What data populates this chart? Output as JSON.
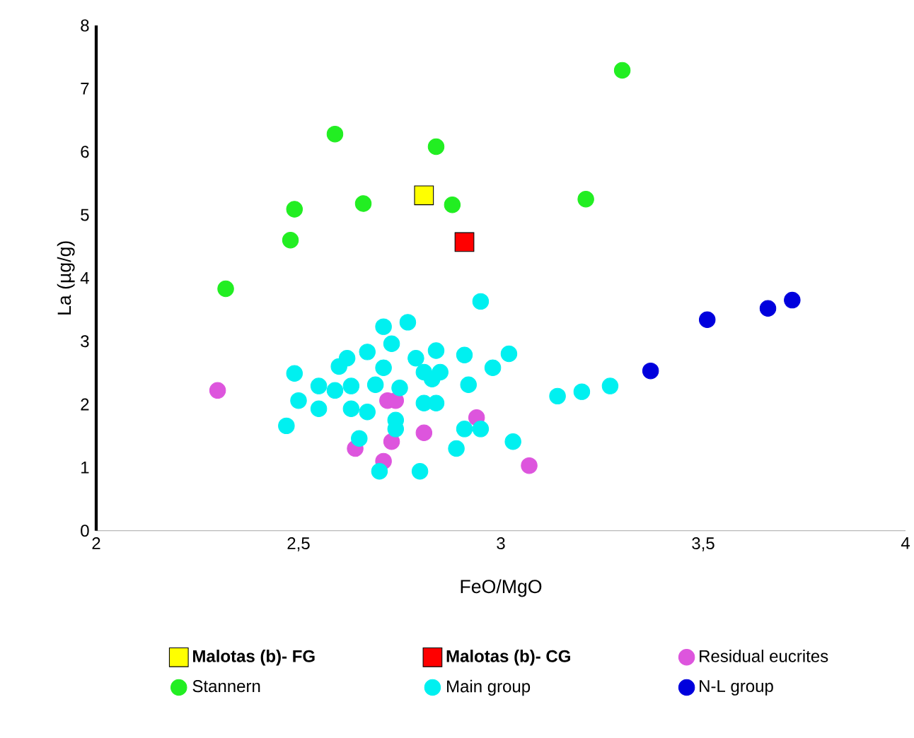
{
  "chart_data": {
    "type": "scatter",
    "xlabel": "FeO/MgO",
    "ylabel": "La (µg/g)",
    "xlim": [
      2,
      4
    ],
    "ylim": [
      0,
      8
    ],
    "xticks": [
      2,
      {
        "value": 2.5,
        "label": "2,5"
      },
      3,
      {
        "value": 3.5,
        "label": "3,5"
      },
      4
    ],
    "yticks": [
      0,
      1,
      2,
      3,
      4,
      5,
      6,
      7,
      8
    ],
    "grid": false,
    "legend": "bottom",
    "series": [
      {
        "name": "Malotas (b)- FG",
        "color": "#ffff00",
        "marker": "square",
        "x": [
          2.81
        ],
        "values": [
          5.31
        ]
      },
      {
        "name": "Malotas (b)- CG",
        "color": "#ff0000",
        "marker": "square",
        "x": [
          2.91
        ],
        "values": [
          4.57
        ]
      },
      {
        "name": "Residual eucrites",
        "color": "#dd55dd",
        "marker": "circle",
        "x": [
          2.3,
          2.72,
          2.74,
          2.94,
          2.81,
          2.73,
          2.64,
          2.71,
          3.07
        ],
        "values": [
          2.22,
          2.06,
          2.06,
          1.79,
          1.55,
          1.41,
          1.3,
          1.1,
          1.03
        ]
      },
      {
        "name": "Stannern",
        "color": "#22ee22",
        "marker": "circle",
        "x": [
          2.32,
          2.49,
          2.48,
          2.59,
          2.66,
          2.84,
          2.88,
          3.21,
          3.3
        ],
        "values": [
          3.83,
          5.09,
          4.6,
          6.28,
          5.18,
          6.08,
          5.16,
          5.25,
          7.29
        ]
      },
      {
        "name": "Main group",
        "color": "#00f0f0",
        "marker": "circle",
        "x": [
          2.95,
          2.71,
          2.77,
          2.73,
          2.67,
          2.62,
          2.6,
          2.49,
          2.55,
          2.59,
          2.63,
          2.69,
          2.71,
          2.75,
          2.79,
          2.84,
          2.91,
          2.83,
          2.84,
          2.81,
          2.92,
          2.98,
          3.02,
          2.5,
          2.55,
          2.47,
          2.63,
          2.67,
          2.74,
          2.74,
          2.91,
          2.95,
          3.03,
          2.89,
          2.65,
          2.7,
          2.8,
          3.14,
          3.2,
          3.27,
          2.81,
          2.85
        ],
        "values": [
          3.63,
          3.23,
          3.3,
          2.96,
          2.83,
          2.73,
          2.6,
          2.49,
          2.29,
          2.22,
          2.29,
          2.31,
          2.58,
          2.26,
          2.73,
          2.85,
          2.78,
          2.4,
          2.02,
          2.02,
          2.31,
          2.58,
          2.8,
          2.06,
          1.93,
          1.66,
          1.93,
          1.88,
          1.75,
          1.61,
          1.61,
          1.61,
          1.41,
          1.3,
          1.46,
          0.94,
          0.94,
          2.13,
          2.2,
          2.29,
          2.51,
          2.51
        ]
      },
      {
        "name": "N-L group",
        "color": "#0000dd",
        "marker": "circle",
        "x": [
          3.37,
          3.51,
          3.66,
          3.72
        ],
        "values": [
          2.53,
          3.34,
          3.52,
          3.65
        ]
      }
    ]
  }
}
